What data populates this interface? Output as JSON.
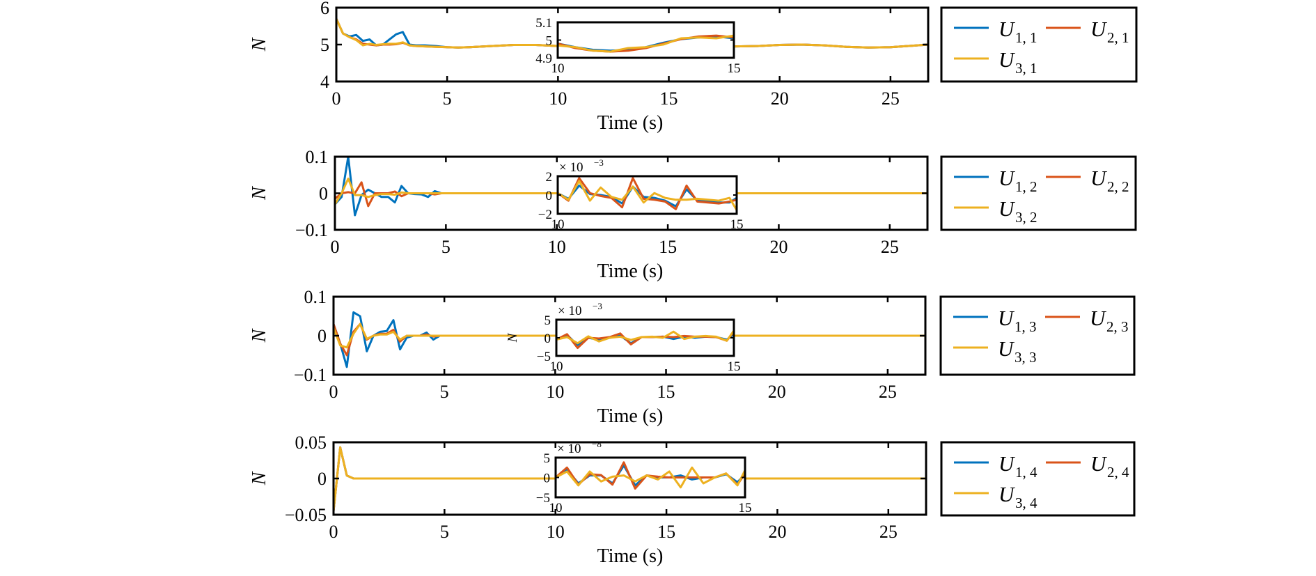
{
  "colors": {
    "U1": "#0072BD",
    "U2": "#D95319",
    "U3": "#EDB120",
    "axis": "#000000"
  },
  "chart_data": [
    {
      "type": "line",
      "title": "",
      "xlabel": "Time (s)",
      "ylabel": "N",
      "xlim": [
        0,
        26.7
      ],
      "ylim": [
        4,
        6
      ],
      "xticks": [
        "0",
        "5",
        "10",
        "15",
        "20",
        "25"
      ],
      "yticks": [
        "4",
        "5",
        "6"
      ],
      "ytick_values": [
        4,
        5,
        6
      ],
      "legend": {
        "placement": "right-outside",
        "entries": [
          {
            "name": "U",
            "sub": "1, 1"
          },
          {
            "name": "U",
            "sub": "2, 1"
          },
          {
            "name": "U",
            "sub": "3, 1"
          }
        ]
      },
      "x": [
        0,
        0.3,
        0.6,
        0.9,
        1.2,
        1.5,
        1.8,
        2.1,
        2.4,
        2.7,
        3.0,
        3.3,
        3.6,
        4.0,
        4.5,
        5.0,
        5.5,
        6,
        7,
        8,
        9,
        10,
        11,
        12,
        13,
        14,
        15,
        16,
        17,
        18,
        19,
        20,
        21,
        22,
        23,
        24,
        25,
        26,
        26.7
      ],
      "series": [
        {
          "name": "U1,1",
          "values": [
            5.7,
            5.3,
            5.22,
            5.26,
            5.1,
            5.14,
            4.98,
            5.0,
            5.14,
            5.28,
            5.34,
            5.0,
            4.98,
            4.98,
            4.96,
            4.93,
            4.92,
            4.93,
            4.96,
            4.99,
            4.99,
            4.96,
            4.93,
            4.93,
            4.95,
            4.99,
            5.02,
            5.05,
            5.05,
            4.95,
            4.96,
            4.99,
            5.0,
            4.98,
            4.94,
            4.92,
            4.93,
            4.97,
            5.0
          ]
        },
        {
          "name": "U2,1",
          "values": [
            5.7,
            5.3,
            5.2,
            5.14,
            5.02,
            5.0,
            4.98,
            5.0,
            5.0,
            5.01,
            5.05,
            4.98,
            4.96,
            4.95,
            4.94,
            4.93,
            4.92,
            4.93,
            4.96,
            4.99,
            4.99,
            4.96,
            4.93,
            4.93,
            4.95,
            4.99,
            5.02,
            5.05,
            5.05,
            4.95,
            4.96,
            4.99,
            5.0,
            4.98,
            4.94,
            4.92,
            4.93,
            4.97,
            5.0
          ]
        },
        {
          "name": "U3,1",
          "values": [
            5.7,
            5.3,
            5.2,
            5.12,
            4.98,
            5.02,
            4.99,
            5.01,
            5.02,
            5.02,
            5.06,
            4.98,
            4.96,
            4.95,
            4.94,
            4.93,
            4.92,
            4.93,
            4.96,
            4.99,
            4.99,
            4.96,
            4.93,
            4.93,
            4.95,
            4.99,
            5.02,
            5.05,
            5.05,
            4.95,
            4.96,
            4.99,
            5.0,
            4.98,
            4.94,
            4.92,
            4.93,
            4.97,
            5.0
          ]
        }
      ],
      "inset": {
        "xlim": [
          10,
          15
        ],
        "ylim": [
          4.9,
          5.1
        ],
        "xticks": [
          "10",
          "15"
        ],
        "yticks": [
          "4.9",
          "5",
          "5.1"
        ],
        "ytick_values": [
          4.9,
          5,
          5.1
        ],
        "multiplier": "",
        "x": [
          10,
          10.5,
          11,
          11.5,
          12,
          12.5,
          13,
          13.5,
          14,
          14.5,
          15
        ],
        "series": [
          {
            "name": "U1,1",
            "values": [
              4.98,
              4.96,
              4.945,
              4.94,
              4.945,
              4.96,
              4.985,
              5.005,
              5.015,
              5.02,
              5.01
            ]
          },
          {
            "name": "U2,1",
            "values": [
              4.98,
              4.955,
              4.94,
              4.935,
              4.94,
              4.955,
              4.98,
              5.005,
              5.02,
              5.025,
              5.015
            ]
          },
          {
            "name": "U3,1",
            "values": [
              4.97,
              4.96,
              4.94,
              4.935,
              4.955,
              4.96,
              4.975,
              5.01,
              5.015,
              5.01,
              5.025
            ]
          }
        ]
      }
    },
    {
      "type": "line",
      "title": "",
      "xlabel": "Time (s)",
      "ylabel": "N",
      "xlim": [
        0,
        26.7
      ],
      "ylim": [
        -0.1,
        0.1
      ],
      "xticks": [
        "0",
        "5",
        "10",
        "15",
        "20",
        "25"
      ],
      "yticks": [
        "−0.1",
        "0",
        "0.1"
      ],
      "ytick_values": [
        -0.1,
        0,
        0.1
      ],
      "legend": {
        "placement": "right-outside",
        "entries": [
          {
            "name": "U",
            "sub": "1, 2"
          },
          {
            "name": "U",
            "sub": "2, 2"
          },
          {
            "name": "U",
            "sub": "3, 2"
          }
        ]
      },
      "x": [
        0,
        0.3,
        0.6,
        0.9,
        1.2,
        1.5,
        1.8,
        2.1,
        2.4,
        2.7,
        3.0,
        3.3,
        3.6,
        3.9,
        4.2,
        4.5,
        4.8,
        5.5,
        7,
        9,
        12,
        15,
        18,
        21,
        24,
        26.7
      ],
      "series": [
        {
          "name": "U1,2",
          "values": [
            -0.03,
            -0.01,
            0.1,
            -0.06,
            -0.005,
            0.01,
            0.0,
            -0.01,
            -0.01,
            -0.025,
            0.02,
            0.0,
            -0.002,
            -0.003,
            -0.01,
            0.006,
            0.0,
            0.0,
            0.0,
            0.0,
            0.0,
            0.0,
            0.0,
            0.0,
            0.0,
            0.0
          ]
        },
        {
          "name": "U2,2",
          "values": [
            -0.015,
            0.0,
            0.003,
            0.0,
            0.03,
            -0.035,
            0.0,
            0.0,
            0.0,
            0.005,
            -0.008,
            0.0,
            0.0,
            0.0,
            0.0,
            -0.003,
            0.0,
            0.0,
            0.0,
            0.0,
            0.0,
            0.0,
            0.0,
            0.0,
            0.0,
            0.0
          ]
        },
        {
          "name": "U3,2",
          "values": [
            -0.03,
            0.0,
            0.04,
            -0.005,
            -0.005,
            -0.01,
            -0.005,
            -0.002,
            -0.002,
            -0.004,
            0.002,
            0.0,
            0.0,
            0.0,
            0.0,
            0.0,
            0.0,
            0.0,
            0.0,
            0.0,
            0.0,
            0.0,
            0.0,
            0.0,
            0.0,
            0.0
          ]
        }
      ],
      "inset": {
        "xlim": [
          10,
          15
        ],
        "ylim": [
          -2,
          2
        ],
        "xticks": [
          "10",
          "15"
        ],
        "yticks": [
          "−2",
          "0",
          "2"
        ],
        "ytick_values": [
          -2,
          0,
          2
        ],
        "multiplier": "× 10",
        "multiplier_exp": "−3",
        "x": [
          10,
          10.3,
          10.6,
          10.9,
          11.2,
          11.5,
          11.8,
          12.1,
          12.4,
          12.7,
          13.0,
          13.3,
          13.6,
          13.9,
          14.2,
          14.5,
          14.8,
          15
        ],
        "series": [
          {
            "name": "U1,2",
            "values": [
              0.2,
              -0.4,
              1.0,
              0.1,
              0.0,
              -0.2,
              -0.9,
              0.9,
              -0.2,
              -0.3,
              -0.6,
              -1.2,
              0.6,
              -0.6,
              -0.7,
              -0.8,
              -0.8,
              -0.3
            ]
          },
          {
            "name": "U2,2",
            "values": [
              0.2,
              -0.6,
              1.8,
              0.2,
              -0.1,
              -0.3,
              -1.3,
              1.8,
              -0.4,
              -0.5,
              -0.7,
              -1.5,
              1.0,
              -0.7,
              -0.8,
              -0.9,
              -0.7,
              -0.5
            ]
          },
          {
            "name": "U3,2",
            "values": [
              0.2,
              -0.5,
              1.5,
              -0.6,
              0.8,
              -0.2,
              -0.5,
              0.9,
              -0.8,
              0.2,
              -0.3,
              -0.5,
              -0.5,
              -0.4,
              -0.5,
              -0.6,
              -0.3,
              -1.6
            ]
          }
        ]
      }
    },
    {
      "type": "line",
      "title": "",
      "xlabel": "Time (s)",
      "ylabel": "N",
      "xlim": [
        0,
        26.7
      ],
      "ylim": [
        -0.1,
        0.1
      ],
      "xticks": [
        "0",
        "5",
        "10",
        "15",
        "20",
        "25"
      ],
      "yticks": [
        "−0.1",
        "0",
        "0.1"
      ],
      "ytick_values": [
        -0.1,
        0,
        0.1
      ],
      "legend": {
        "placement": "right-outside",
        "entries": [
          {
            "name": "U",
            "sub": "1, 3"
          },
          {
            "name": "U",
            "sub": "2, 3"
          },
          {
            "name": "U",
            "sub": "3, 3"
          }
        ]
      },
      "x": [
        0,
        0.3,
        0.6,
        0.9,
        1.2,
        1.5,
        1.8,
        2.1,
        2.4,
        2.7,
        3.0,
        3.3,
        3.6,
        3.9,
        4.2,
        4.5,
        4.8,
        5.5,
        7,
        9,
        12,
        15,
        18,
        21,
        24,
        26.7
      ],
      "series": [
        {
          "name": "U1,3",
          "values": [
            0.03,
            -0.02,
            -0.08,
            0.06,
            0.05,
            -0.04,
            0.0,
            0.01,
            0.012,
            0.04,
            -0.035,
            -0.005,
            0.0,
            0.0,
            0.008,
            -0.01,
            0.0,
            0.0,
            0.0,
            0.0,
            0.0,
            0.0,
            0.0,
            0.0,
            0.0,
            0.0
          ]
        },
        {
          "name": "U2,3",
          "values": [
            0.03,
            -0.02,
            -0.05,
            0.01,
            0.03,
            -0.01,
            0.0,
            0.005,
            0.005,
            0.015,
            -0.015,
            0.0,
            0.0,
            0.0,
            0.003,
            -0.002,
            0.0,
            0.0,
            0.0,
            0.0,
            0.0,
            0.0,
            0.0,
            0.0,
            0.0,
            0.0
          ]
        },
        {
          "name": "U3,3",
          "values": [
            0.02,
            -0.025,
            -0.03,
            0.005,
            0.03,
            -0.008,
            0.0,
            0.003,
            0.003,
            0.01,
            -0.01,
            0.0,
            0.0,
            0.0,
            0.0,
            0.0,
            0.0,
            0.0,
            0.0,
            0.0,
            0.0,
            0.0,
            0.0,
            0.0,
            0.0,
            0.0
          ]
        }
      ],
      "inset": {
        "xlim": [
          10,
          15
        ],
        "ylim": [
          -5,
          5
        ],
        "xticks": [
          "10",
          "15"
        ],
        "yticks": [
          "−5",
          "0",
          "5"
        ],
        "ytick_values": [
          -5,
          0,
          5
        ],
        "ylabel": "N",
        "multiplier": "× 10",
        "multiplier_exp": "−3",
        "x": [
          10,
          10.3,
          10.6,
          10.9,
          11.2,
          11.5,
          11.8,
          12.1,
          12.4,
          12.7,
          13.0,
          13.3,
          13.6,
          13.9,
          14.2,
          14.5,
          14.8,
          15
        ],
        "series": [
          {
            "name": "U1,3",
            "values": [
              -0.5,
              0.8,
              -2.0,
              0.0,
              -0.5,
              0.0,
              0.6,
              -1.5,
              0.2,
              0.2,
              0.3,
              -0.3,
              0.3,
              0.0,
              0.3,
              0.2,
              -0.5,
              1.0
            ]
          },
          {
            "name": "U2,3",
            "values": [
              -0.5,
              1.0,
              -2.8,
              0.0,
              -0.2,
              0.2,
              1.2,
              -1.8,
              0.2,
              0.2,
              0.3,
              0.2,
              0.5,
              0.3,
              0.3,
              0.2,
              -0.8,
              1.7
            ]
          },
          {
            "name": "U3,3",
            "values": [
              -0.5,
              0.2,
              -1.5,
              0.4,
              -1.0,
              0.0,
              0.3,
              -0.6,
              0.2,
              0.3,
              0.0,
              1.7,
              -0.3,
              0.3,
              0.5,
              0.3,
              -0.8,
              2.0
            ]
          }
        ]
      }
    },
    {
      "type": "line",
      "title": "",
      "xlabel": "Time (s)",
      "ylabel": "N",
      "xlim": [
        0,
        26.7
      ],
      "ylim": [
        -0.05,
        0.05
      ],
      "xticks": [
        "0",
        "5",
        "10",
        "15",
        "20",
        "25"
      ],
      "yticks": [
        "−0.05",
        "0",
        "0.05"
      ],
      "ytick_values": [
        -0.05,
        0,
        0.05
      ],
      "legend": {
        "placement": "right-outside",
        "entries": [
          {
            "name": "U",
            "sub": "1, 4"
          },
          {
            "name": "U",
            "sub": "2, 4"
          },
          {
            "name": "U",
            "sub": "3, 4"
          }
        ]
      },
      "x": [
        0,
        0.3,
        0.6,
        0.9,
        1.5,
        5,
        10,
        15,
        20,
        25,
        26.7
      ],
      "series": [
        {
          "name": "U1,4",
          "values": [
            -0.045,
            0.043,
            0.004,
            0.0,
            0.0,
            0.0,
            0.0,
            0.0,
            0.0,
            0.0,
            0.0
          ]
        },
        {
          "name": "U2,4",
          "values": [
            -0.045,
            0.043,
            0.004,
            0.0,
            0.0,
            0.0,
            0.0,
            0.0,
            0.0,
            0.0,
            0.0
          ]
        },
        {
          "name": "U3,4",
          "values": [
            -0.045,
            0.043,
            0.004,
            0.0,
            0.0,
            0.0,
            0.0,
            0.0,
            0.0,
            0.0,
            0.0
          ]
        }
      ],
      "inset": {
        "xlim": [
          10,
          15
        ],
        "ylim": [
          -5,
          5
        ],
        "xticks": [
          "10",
          "15"
        ],
        "yticks": [
          "−5",
          "0",
          "5"
        ],
        "ytick_values": [
          -5,
          0,
          5
        ],
        "multiplier": "× 10",
        "multiplier_exp": "−8",
        "x": [
          10,
          10.3,
          10.6,
          10.9,
          11.2,
          11.5,
          11.8,
          12.1,
          12.4,
          12.7,
          13.0,
          13.3,
          13.6,
          13.9,
          14.2,
          14.5,
          14.8,
          15
        ],
        "series": [
          {
            "name": "U1,4",
            "values": [
              0.0,
              2.0,
              -1.5,
              0.5,
              0.5,
              -1.5,
              3.0,
              -2.0,
              0.5,
              0.0,
              0.0,
              0.5,
              -0.5,
              0.0,
              0.0,
              0.8,
              -1.2,
              0.8
            ]
          },
          {
            "name": "U2,4",
            "values": [
              0.0,
              2.5,
              -1.8,
              0.8,
              0.6,
              -1.8,
              3.8,
              -2.8,
              0.5,
              0.2,
              0.0,
              0.0,
              0.0,
              0.0,
              0.0,
              1.0,
              -1.8,
              1.0
            ]
          },
          {
            "name": "U3,4",
            "values": [
              0.0,
              1.5,
              -2.0,
              1.5,
              -1.0,
              0.2,
              0.5,
              -1.0,
              0.5,
              -0.5,
              1.5,
              -2.5,
              2.5,
              -1.5,
              0.0,
              1.0,
              -2.0,
              1.8
            ]
          }
        ]
      }
    }
  ]
}
